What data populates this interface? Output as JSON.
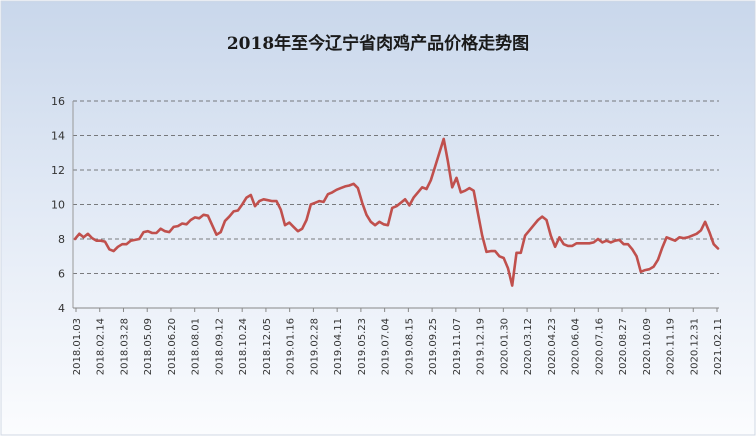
{
  "chart_data": {
    "type": "line",
    "title": "2018年至今辽宁省肉鸡产品价格走势图",
    "xlabel": "",
    "ylabel": "",
    "ylim": [
      4,
      16
    ],
    "yticks": [
      4,
      6,
      8,
      10,
      12,
      14,
      16
    ],
    "grid": true,
    "legend": "none",
    "x_tick_labels": [
      "2018.01.03",
      "2018.02.14",
      "2018.03.28",
      "2018.05.09",
      "2018.06.20",
      "2018.08.01",
      "2018.09.12",
      "2018.10.24",
      "2018.12.05",
      "2019.01.16",
      "2019.02.28",
      "2019.04.11",
      "2019.05.23",
      "2019.07.04",
      "2019.08.15",
      "2019.09.25",
      "2019.11.07",
      "2019.12.19",
      "2020.01.30",
      "2020.03.12",
      "2020.04.23",
      "2020.06.04",
      "2020.07.16",
      "2020.08.27",
      "2020.10.09",
      "2020.11.19",
      "2020.12.31",
      "2021.02.11"
    ],
    "series": [
      {
        "color": "#c0504d",
        "values": [
          8.0,
          8.3,
          8.1,
          8.3,
          8.05,
          7.9,
          7.9,
          7.85,
          7.4,
          7.3,
          7.55,
          7.7,
          7.7,
          7.9,
          7.95,
          8.0,
          8.4,
          8.45,
          8.35,
          8.35,
          8.6,
          8.45,
          8.4,
          8.7,
          8.75,
          8.9,
          8.85,
          9.1,
          9.25,
          9.2,
          9.4,
          9.35,
          8.8,
          8.25,
          8.4,
          9.05,
          9.3,
          9.6,
          9.65,
          10.0,
          10.4,
          10.55,
          9.9,
          10.2,
          10.3,
          10.25,
          10.2,
          10.2,
          9.7,
          8.8,
          8.95,
          8.7,
          8.45,
          8.6,
          9.1,
          10.0,
          10.1,
          10.2,
          10.15,
          10.6,
          10.7,
          10.85,
          10.95,
          11.05,
          11.1,
          11.2,
          10.95,
          10.1,
          9.4,
          9.0,
          8.8,
          9.0,
          8.85,
          8.8,
          9.8,
          9.9,
          10.1,
          10.3,
          9.95,
          10.4,
          10.7,
          11.0,
          10.9,
          11.4,
          12.2,
          13.0,
          13.8,
          12.5,
          11.0,
          11.55,
          10.7,
          10.8,
          10.95,
          10.8,
          9.5,
          8.2,
          7.25,
          7.3,
          7.3,
          7.0,
          6.9,
          6.3,
          5.3,
          7.2,
          7.2,
          8.2,
          8.5,
          8.8,
          9.1,
          9.3,
          9.1,
          8.2,
          7.55,
          8.1,
          7.7,
          7.6,
          7.6,
          7.75,
          7.75,
          7.75,
          7.75,
          7.8,
          8.0,
          7.8,
          7.9,
          7.8,
          7.9,
          7.95,
          7.7,
          7.7,
          7.4,
          7.0,
          6.1,
          6.2,
          6.25,
          6.4,
          6.8,
          7.5,
          8.1,
          8.0,
          7.9,
          8.1,
          8.05,
          8.1,
          8.2,
          8.3,
          8.5,
          9.0,
          8.4,
          7.7,
          7.45
        ]
      }
    ]
  }
}
